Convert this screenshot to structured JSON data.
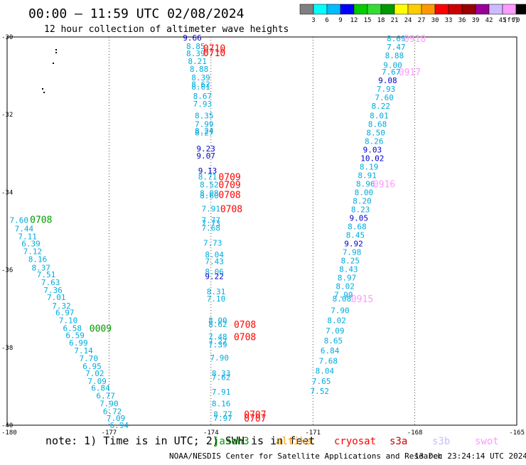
{
  "header": {
    "title": "00:00 – 11:59 UTC 02/08/2024",
    "subtitle": "12 hour collection of altimeter wave heights"
  },
  "colorbar": {
    "unit": "(ft)",
    "labels": [
      "3",
      "6",
      "9",
      "12",
      "15",
      "18",
      "21",
      "24",
      "27",
      "30",
      "33",
      "36",
      "39",
      "42",
      "45",
      "70"
    ],
    "colors": [
      "#808080",
      "#00ffff",
      "#00bbff",
      "#0000ff",
      "#00cc00",
      "#33dd33",
      "#009900",
      "#ffff00",
      "#ffcc00",
      "#ff9900",
      "#ff0000",
      "#cc0000",
      "#990000",
      "#990099",
      "#ccbbff",
      "#ff99ff",
      "#000000"
    ]
  },
  "axes": {
    "lat_labels": [
      "-30",
      "-32",
      "-34",
      "-36",
      "-38",
      "-40"
    ],
    "lon_labels": [
      "-180",
      "-177",
      "-174",
      "-171",
      "-168",
      "-165"
    ]
  },
  "legend": {
    "note": "note:  1) Time is in UTC; 2) SWH is in feet",
    "satellites": [
      {
        "name": "jason3",
        "color": "#009900"
      },
      {
        "name": "altika",
        "color": "#ff9900"
      },
      {
        "name": "cryosat",
        "color": "#ff0000"
      },
      {
        "name": "s3a",
        "color": "#cc0000"
      },
      {
        "name": "s3b",
        "color": "#ccbbff"
      },
      {
        "name": "swot",
        "color": "#ff99ff"
      }
    ]
  },
  "footer": {
    "credit": "NOAA/NESDIS Center for Satellite Applications and Research",
    "timestamp": "13 Dec 23:24:14 UTC 2024"
  },
  "tracks": [
    {
      "id": "track-a",
      "points": [
        {
          "lat": -34.72,
          "lon": -179.65,
          "value": "7.60"
        },
        {
          "lat": -34.94,
          "lon": -179.5,
          "value": "7.44"
        },
        {
          "lat": -35.14,
          "lon": -179.4,
          "value": "7.11"
        },
        {
          "lat": -35.32,
          "lon": -179.3,
          "value": "6.39"
        },
        {
          "lat": -35.52,
          "lon": -179.25,
          "value": "7.12"
        },
        {
          "lat": -35.72,
          "lon": -179.1,
          "value": "8.16"
        },
        {
          "lat": -35.94,
          "lon": -179.0,
          "value": "8.37"
        },
        {
          "lat": -36.12,
          "lon": -178.85,
          "value": "7.51"
        },
        {
          "lat": -36.32,
          "lon": -178.72,
          "value": "7.63"
        },
        {
          "lat": -36.52,
          "lon": -178.65,
          "value": "7.36"
        },
        {
          "lat": -36.7,
          "lon": -178.55,
          "value": "7.01"
        },
        {
          "lat": -36.92,
          "lon": -178.4,
          "value": "7.32"
        },
        {
          "lat": -37.1,
          "lon": -178.3,
          "value": "6.97"
        },
        {
          "lat": -37.3,
          "lon": -178.2,
          "value": "7.10"
        },
        {
          "lat": -37.5,
          "lon": -178.08,
          "value": "6.58"
        },
        {
          "lat": -37.68,
          "lon": -178.0,
          "value": "6.59"
        },
        {
          "lat": -37.88,
          "lon": -177.9,
          "value": "6.99"
        },
        {
          "lat": -38.08,
          "lon": -177.75,
          "value": "7.14"
        },
        {
          "lat": -38.28,
          "lon": -177.6,
          "value": "7.70"
        },
        {
          "lat": -38.48,
          "lon": -177.5,
          "value": "6.95"
        },
        {
          "lat": -38.66,
          "lon": -177.42,
          "value": "7.02"
        },
        {
          "lat": -38.86,
          "lon": -177.35,
          "value": "7.09"
        },
        {
          "lat": -39.04,
          "lon": -177.25,
          "value": "6.84"
        },
        {
          "lat": -39.24,
          "lon": -177.1,
          "value": "6.77"
        },
        {
          "lat": -39.44,
          "lon": -177.0,
          "value": "7.90"
        },
        {
          "lat": -39.64,
          "lon": -176.9,
          "value": "6.72"
        },
        {
          "lat": -39.82,
          "lon": -176.8,
          "value": "7.09"
        },
        {
          "lat": -40.0,
          "lon": -176.7,
          "value": "6.94"
        }
      ]
    },
    {
      "id": "track-b",
      "points": [
        {
          "lat": -30.02,
          "lon": -174.55,
          "value": "9.66",
          "color": "#0000cc"
        },
        {
          "lat": -30.24,
          "lon": -174.45,
          "value": "8.85"
        },
        {
          "lat": -30.42,
          "lon": -174.45,
          "value": "8.39"
        },
        {
          "lat": -30.62,
          "lon": -174.4,
          "value": "8.21"
        },
        {
          "lat": -30.82,
          "lon": -174.35,
          "value": "8.88"
        },
        {
          "lat": -31.04,
          "lon": -174.3,
          "value": "8.39"
        },
        {
          "lat": -31.22,
          "lon": -174.3,
          "value": "8.62"
        },
        {
          "lat": -31.28,
          "lon": -174.3,
          "value": "8.61"
        },
        {
          "lat": -31.52,
          "lon": -174.25,
          "value": "8.67"
        },
        {
          "lat": -31.72,
          "lon": -174.25,
          "value": "7.93"
        },
        {
          "lat": -32.02,
          "lon": -174.2,
          "value": "8.35"
        },
        {
          "lat": -32.24,
          "lon": -174.2,
          "value": "7.99"
        },
        {
          "lat": -32.42,
          "lon": -174.2,
          "value": "8.24"
        },
        {
          "lat": -32.46,
          "lon": -174.2,
          "value": "8.27"
        },
        {
          "lat": -32.88,
          "lon": -174.15,
          "value": "9.23",
          "color": "#0000cc"
        },
        {
          "lat": -33.06,
          "lon": -174.15,
          "value": "9.07",
          "color": "#0000cc"
        },
        {
          "lat": -33.44,
          "lon": -174.1,
          "value": "9.13",
          "color": "#0000cc"
        },
        {
          "lat": -33.6,
          "lon": -174.1,
          "value": "8.71"
        },
        {
          "lat": -33.8,
          "lon": -174.05,
          "value": "8.52"
        },
        {
          "lat": -34.02,
          "lon": -174.05,
          "value": "8.08"
        },
        {
          "lat": -34.08,
          "lon": -174.05,
          "value": "8.60"
        },
        {
          "lat": -34.42,
          "lon": -174.0,
          "value": "7.91"
        },
        {
          "lat": -34.72,
          "lon": -174.0,
          "value": "7.77"
        },
        {
          "lat": -34.8,
          "lon": -174.0,
          "value": "7.73"
        },
        {
          "lat": -34.92,
          "lon": -174.0,
          "value": "7.68"
        },
        {
          "lat": -35.3,
          "lon": -173.95,
          "value": "7.73"
        },
        {
          "lat": -35.6,
          "lon": -173.9,
          "value": "8.04"
        },
        {
          "lat": -35.78,
          "lon": -173.9,
          "value": "7.43"
        },
        {
          "lat": -36.04,
          "lon": -173.9,
          "value": "8.06"
        },
        {
          "lat": -36.16,
          "lon": -173.9,
          "value": "9.22",
          "color": "#0000cc"
        },
        {
          "lat": -36.56,
          "lon": -173.85,
          "value": "8.31"
        },
        {
          "lat": -36.74,
          "lon": -173.85,
          "value": "7.10"
        },
        {
          "lat": -37.3,
          "lon": -173.8,
          "value": "8.00"
        },
        {
          "lat": -37.4,
          "lon": -173.8,
          "value": "8.62"
        },
        {
          "lat": -37.72,
          "lon": -173.8,
          "value": "7.48"
        },
        {
          "lat": -37.84,
          "lon": -173.8,
          "value": "7.27"
        },
        {
          "lat": -37.92,
          "lon": -173.8,
          "value": "7.39"
        },
        {
          "lat": -38.26,
          "lon": -173.75,
          "value": "7.90"
        },
        {
          "lat": -38.66,
          "lon": -173.7,
          "value": "8.33"
        },
        {
          "lat": -38.76,
          "lon": -173.7,
          "value": "7.62"
        },
        {
          "lat": -39.14,
          "lon": -173.7,
          "value": "7.91"
        },
        {
          "lat": -39.44,
          "lon": -173.7,
          "value": "8.16"
        },
        {
          "lat": -39.72,
          "lon": -173.65,
          "value": "8.77"
        },
        {
          "lat": -39.82,
          "lon": -173.65,
          "value": "7.97"
        }
      ]
    },
    {
      "id": "track-c",
      "points": [
        {
          "lat": -30.04,
          "lon": -168.55,
          "value": "8.69"
        },
        {
          "lat": -30.26,
          "lon": -168.55,
          "value": "7.47"
        },
        {
          "lat": -30.48,
          "lon": -168.6,
          "value": "8.88"
        },
        {
          "lat": -30.72,
          "lon": -168.65,
          "value": "9.00"
        },
        {
          "lat": -30.9,
          "lon": -168.7,
          "value": "7.67"
        },
        {
          "lat": -31.12,
          "lon": -168.8,
          "value": "9.08",
          "color": "#0000cc"
        },
        {
          "lat": -31.34,
          "lon": -168.85,
          "value": "7.93"
        },
        {
          "lat": -31.56,
          "lon": -168.9,
          "value": "7.60"
        },
        {
          "lat": -31.78,
          "lon": -169.0,
          "value": "8.22"
        },
        {
          "lat": -32.02,
          "lon": -169.05,
          "value": "8.01"
        },
        {
          "lat": -32.24,
          "lon": -169.1,
          "value": "8.68"
        },
        {
          "lat": -32.46,
          "lon": -169.15,
          "value": "8.50"
        },
        {
          "lat": -32.68,
          "lon": -169.2,
          "value": "8.26"
        },
        {
          "lat": -32.9,
          "lon": -169.25,
          "value": "9.03",
          "color": "#0000cc"
        },
        {
          "lat": -33.12,
          "lon": -169.25,
          "value": "10.02",
          "color": "#0000cc"
        },
        {
          "lat": -33.34,
          "lon": -169.35,
          "value": "8.19"
        },
        {
          "lat": -33.56,
          "lon": -169.4,
          "value": "8.91"
        },
        {
          "lat": -33.78,
          "lon": -169.45,
          "value": "8.96"
        },
        {
          "lat": -34.0,
          "lon": -169.5,
          "value": "8.00"
        },
        {
          "lat": -34.22,
          "lon": -169.55,
          "value": "8.20"
        },
        {
          "lat": -34.44,
          "lon": -169.6,
          "value": "8.23"
        },
        {
          "lat": -34.66,
          "lon": -169.65,
          "value": "9.05",
          "color": "#0000cc"
        },
        {
          "lat": -34.88,
          "lon": -169.7,
          "value": "8.68"
        },
        {
          "lat": -35.1,
          "lon": -169.75,
          "value": "8.45"
        },
        {
          "lat": -35.32,
          "lon": -169.8,
          "value": "9.92",
          "color": "#0000cc"
        },
        {
          "lat": -35.54,
          "lon": -169.85,
          "value": "7.98"
        },
        {
          "lat": -35.76,
          "lon": -169.9,
          "value": "8.25"
        },
        {
          "lat": -35.98,
          "lon": -169.95,
          "value": "8.43"
        },
        {
          "lat": -36.2,
          "lon": -170.0,
          "value": "8.97"
        },
        {
          "lat": -36.42,
          "lon": -170.05,
          "value": "8.02"
        },
        {
          "lat": -36.64,
          "lon": -170.1,
          "value": "7.99"
        },
        {
          "lat": -36.74,
          "lon": -170.15,
          "value": "8.08"
        },
        {
          "lat": -37.04,
          "lon": -170.2,
          "value": "7.90"
        },
        {
          "lat": -37.3,
          "lon": -170.3,
          "value": "8.02"
        },
        {
          "lat": -37.56,
          "lon": -170.35,
          "value": "7.09"
        },
        {
          "lat": -37.82,
          "lon": -170.4,
          "value": "8.65"
        },
        {
          "lat": -38.08,
          "lon": -170.5,
          "value": "6.84"
        },
        {
          "lat": -38.34,
          "lon": -170.55,
          "value": "7.68"
        },
        {
          "lat": -38.6,
          "lon": -170.65,
          "value": "8.04"
        },
        {
          "lat": -38.86,
          "lon": -170.75,
          "value": "7.65"
        },
        {
          "lat": -39.12,
          "lon": -170.8,
          "value": "7.52"
        }
      ]
    }
  ],
  "time_labels": [
    {
      "text": "0708",
      "lat": -34.7,
      "lon": -179.0,
      "color": "#009900"
    },
    {
      "text": "0009",
      "lat": -37.5,
      "lon": -177.25,
      "color": "#009900"
    },
    {
      "text": "0710",
      "lat": -30.28,
      "lon": -173.9,
      "color": "#ff0000"
    },
    {
      "text": "0710",
      "lat": -30.4,
      "lon": -173.9,
      "color": "#ff0000"
    },
    {
      "text": "0709",
      "lat": -33.6,
      "lon": -173.45,
      "color": "#ff0000"
    },
    {
      "text": "0709",
      "lat": -33.8,
      "lon": -173.45,
      "color": "#ff0000"
    },
    {
      "text": "0708",
      "lat": -34.06,
      "lon": -173.45,
      "color": "#ff0000"
    },
    {
      "text": "0708",
      "lat": -34.42,
      "lon": -173.4,
      "color": "#ff0000"
    },
    {
      "text": "0708",
      "lat": -37.4,
      "lon": -173.0,
      "color": "#ff0000"
    },
    {
      "text": "0708",
      "lat": -37.72,
      "lon": -173.0,
      "color": "#ff0000"
    },
    {
      "text": "0707",
      "lat": -39.72,
      "lon": -172.7,
      "color": "#ff0000"
    },
    {
      "text": "0707",
      "lat": -39.82,
      "lon": -172.7,
      "color": "#ff0000"
    },
    {
      "text": "0918",
      "lat": -30.04,
      "lon": -168.0,
      "color": "#ff99ff"
    },
    {
      "text": "0917",
      "lat": -30.9,
      "lon": -168.15,
      "color": "#ff99ff"
    },
    {
      "text": "0916",
      "lat": -33.78,
      "lon": -168.9,
      "color": "#ff99ff"
    },
    {
      "text": "0915",
      "lat": -36.74,
      "lon": -169.55,
      "color": "#ff99ff"
    }
  ]
}
